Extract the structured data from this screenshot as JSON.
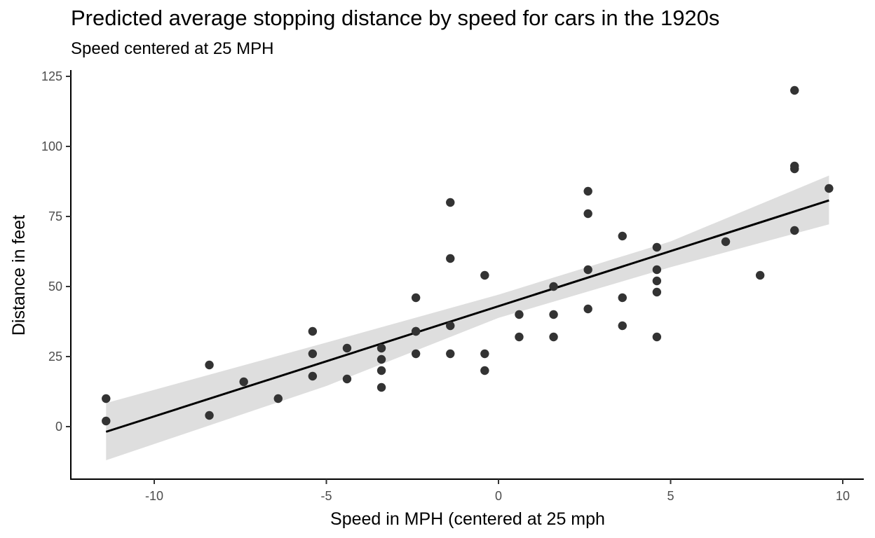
{
  "chart_data": {
    "type": "scatter",
    "title": "Predicted average stopping distance by speed for cars in the 1920s",
    "subtitle": "Speed centered at 25 MPH",
    "xlabel": "Speed in MPH (centered at 25 mph",
    "ylabel": "Distance in feet",
    "xlim": [
      -12.5,
      10.6
    ],
    "ylim": [
      -15,
      126
    ],
    "x_ticks": [
      -10,
      -5,
      0,
      5,
      10
    ],
    "y_ticks": [
      0,
      25,
      50,
      75,
      100,
      125
    ],
    "x_tick_labels": [
      "-10",
      "-5",
      "0",
      "5",
      "10"
    ],
    "y_tick_labels": [
      "0",
      "25",
      "50",
      "75",
      "100",
      "125"
    ],
    "grid": false,
    "legend": "none",
    "point_color": "#333333",
    "line_color": "#000000",
    "band_color": "#dedede",
    "points": [
      {
        "x": -11.4,
        "y": 2
      },
      {
        "x": -11.4,
        "y": 10
      },
      {
        "x": -8.4,
        "y": 4
      },
      {
        "x": -8.4,
        "y": 22
      },
      {
        "x": -7.4,
        "y": 16
      },
      {
        "x": -6.4,
        "y": 10
      },
      {
        "x": -5.4,
        "y": 18
      },
      {
        "x": -5.4,
        "y": 26
      },
      {
        "x": -5.4,
        "y": 34
      },
      {
        "x": -4.4,
        "y": 17
      },
      {
        "x": -4.4,
        "y": 28
      },
      {
        "x": -3.4,
        "y": 14
      },
      {
        "x": -3.4,
        "y": 20
      },
      {
        "x": -3.4,
        "y": 24
      },
      {
        "x": -3.4,
        "y": 28
      },
      {
        "x": -2.4,
        "y": 26
      },
      {
        "x": -2.4,
        "y": 34
      },
      {
        "x": -2.4,
        "y": 34
      },
      {
        "x": -2.4,
        "y": 46
      },
      {
        "x": -1.4,
        "y": 26
      },
      {
        "x": -1.4,
        "y": 36
      },
      {
        "x": -1.4,
        "y": 60
      },
      {
        "x": -1.4,
        "y": 80
      },
      {
        "x": -0.4,
        "y": 20
      },
      {
        "x": -0.4,
        "y": 26
      },
      {
        "x": -0.4,
        "y": 54
      },
      {
        "x": 0.6,
        "y": 32
      },
      {
        "x": 0.6,
        "y": 40
      },
      {
        "x": 1.6,
        "y": 32
      },
      {
        "x": 1.6,
        "y": 40
      },
      {
        "x": 1.6,
        "y": 50
      },
      {
        "x": 2.6,
        "y": 42
      },
      {
        "x": 2.6,
        "y": 56
      },
      {
        "x": 2.6,
        "y": 76
      },
      {
        "x": 2.6,
        "y": 84
      },
      {
        "x": 3.6,
        "y": 36
      },
      {
        "x": 3.6,
        "y": 46
      },
      {
        "x": 3.6,
        "y": 68
      },
      {
        "x": 4.6,
        "y": 32
      },
      {
        "x": 4.6,
        "y": 48
      },
      {
        "x": 4.6,
        "y": 52
      },
      {
        "x": 4.6,
        "y": 56
      },
      {
        "x": 4.6,
        "y": 64
      },
      {
        "x": 6.6,
        "y": 66
      },
      {
        "x": 7.6,
        "y": 54
      },
      {
        "x": 8.6,
        "y": 70
      },
      {
        "x": 8.6,
        "y": 92
      },
      {
        "x": 8.6,
        "y": 93
      },
      {
        "x": 8.6,
        "y": 120
      },
      {
        "x": 9.6,
        "y": 85
      }
    ],
    "fit_line": {
      "intercept": 42.98,
      "slope": 3.932,
      "x_range": [
        -11.4,
        9.6
      ]
    },
    "confidence_band": {
      "x": [
        -11.4,
        -5,
        0,
        5,
        9.6
      ],
      "lower": [
        -12.0,
        14.5,
        38.8,
        56.9,
        72.2
      ],
      "upper": [
        8.4,
        30.0,
        47.1,
        66.1,
        89.6
      ]
    }
  }
}
